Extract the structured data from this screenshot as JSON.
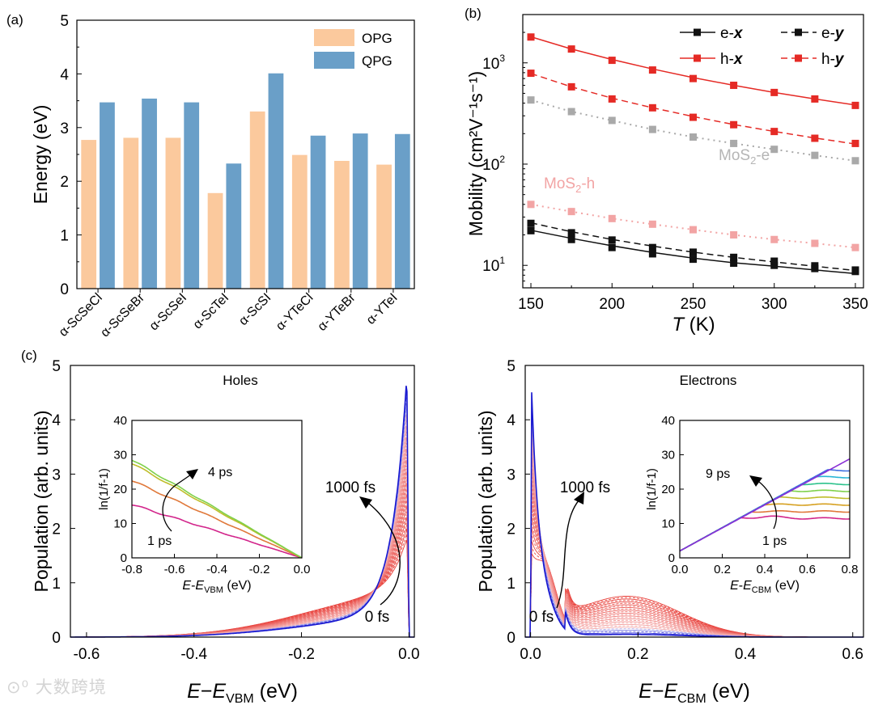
{
  "watermark": "大数跨境",
  "chart_data": [
    {
      "panel": "(a)",
      "type": "bar",
      "ylabel": "Energy (eV)",
      "ylim": [
        0,
        5
      ],
      "yticks": [
        "0",
        "1",
        "2",
        "3",
        "4",
        "5"
      ],
      "categories": [
        "α-ScSeCl",
        "α-ScSeBr",
        "α-ScSeI",
        "α-ScTeI",
        "α-ScSI",
        "α-YTeCl",
        "α-YTeBr",
        "α-YTeI"
      ],
      "series": [
        {
          "name": "OPG",
          "color": "#fbc99d",
          "values": [
            2.77,
            2.81,
            2.81,
            1.78,
            3.3,
            2.49,
            2.38,
            2.31
          ]
        },
        {
          "name": "QPG",
          "color": "#6a9fc8",
          "values": [
            3.47,
            3.54,
            3.47,
            2.33,
            4.01,
            2.85,
            2.89,
            2.88
          ]
        }
      ],
      "legend": "top-right"
    },
    {
      "panel": "(b)",
      "type": "line",
      "scale": "log-y",
      "xlabel_italic": "T",
      "xlabel_rest": " (K)",
      "ylabel": "Mobility (cm²V⁻¹s⁻¹)",
      "xlim": [
        145,
        355
      ],
      "ylim": [
        6,
        3000
      ],
      "xticks": [
        "150",
        "200",
        "250",
        "300",
        "350"
      ],
      "x": [
        150,
        175,
        200,
        225,
        250,
        275,
        300,
        325,
        350
      ],
      "series": [
        {
          "name": "e-",
          "axis": "x",
          "color": "#111111",
          "style": "solid",
          "values": [
            22,
            18,
            15,
            13,
            11.5,
            10.5,
            10,
            9.3,
            8.7
          ],
          "fit": [
            22.2,
            18.5,
            15.6,
            13.4,
            11.8,
            10.6,
            9.8,
            9.0,
            8.3
          ]
        },
        {
          "name": "e-",
          "axis": "y",
          "color": "#111111",
          "style": "dashed",
          "values": [
            26,
            21,
            17.8,
            15,
            13.5,
            12,
            11,
            9.9,
            9
          ],
          "fit": [
            26.3,
            21.5,
            18.0,
            15.5,
            13.5,
            12.0,
            10.8,
            9.8,
            8.9
          ]
        },
        {
          "name": "h-",
          "axis": "x",
          "color": "#e52a25",
          "style": "solid",
          "values": [
            1800,
            1370,
            1060,
            850,
            700,
            600,
            510,
            440,
            380
          ],
          "fit": [
            1810,
            1370,
            1080,
            870,
            715,
            600,
            510,
            440,
            383
          ]
        },
        {
          "name": "h-",
          "axis": "y",
          "color": "#e52a25",
          "style": "dashed",
          "values": [
            790,
            580,
            440,
            360,
            290,
            245,
            210,
            180,
            160
          ],
          "fit": [
            785,
            580,
            448,
            360,
            295,
            246,
            210,
            181,
            158
          ]
        },
        {
          "name": "MoS2-e",
          "color": "#a9a9a9",
          "style": "dotted",
          "values": [
            430,
            330,
            270,
            220,
            185,
            160,
            140,
            122,
            108
          ]
        },
        {
          "name": "MoS2-h",
          "color": "#f2a4a4",
          "style": "dotted",
          "values": [
            40,
            34,
            29,
            25.5,
            22.5,
            20,
            18,
            16.5,
            15
          ]
        }
      ],
      "annotations": {
        "mos2_e_main": "MoS",
        "mos2_e_sub": "2",
        "mos2_e_tail": "-e",
        "mos2_h_main": "MoS",
        "mos2_h_sub": "2",
        "mos2_h_tail": "-h"
      },
      "legend": "top-right"
    },
    {
      "panel": "(c)",
      "subplot": "Holes",
      "type": "line",
      "xlabel_main": "E",
      "xlabel_mid": "−E",
      "xlabel_sub": "VBM",
      "xlabel_unit": " (eV)",
      "ylabel": "Population (arb. units)",
      "xlim": [
        -0.63,
        0.01
      ],
      "ylim": [
        0,
        5
      ],
      "xticks": [
        "-0.6",
        "-0.4",
        "-0.2",
        "0.0"
      ],
      "yticks": [
        "0",
        "1",
        "2",
        "3",
        "4",
        "5"
      ],
      "time_labels": {
        "late": "1000 fs",
        "early": "0 fs"
      },
      "curve_count": 28,
      "curves_from": "0 fs (red)",
      "curves_to": "1000 fs (blue)",
      "inset": {
        "ylabel": "ln(1/f-1)",
        "xlabel_main": "E-E",
        "xlabel_sub": "VBM",
        "xlabel_unit": " (eV)",
        "xlim": [
          -0.8,
          0.0
        ],
        "ylim": [
          0,
          40
        ],
        "xticks": [
          "-0.8",
          "-0.6",
          "-0.4",
          "-0.2",
          "0.0"
        ],
        "yticks": [
          "0",
          "10",
          "20",
          "30",
          "40"
        ],
        "labels": {
          "late": "4 ps",
          "early": "1 ps"
        },
        "series": [
          {
            "name": "1 ps",
            "color": "#d2258b",
            "y_at_-0.8": 15.5
          },
          {
            "name": "2 ps",
            "color": "#e0783a",
            "y_at_-0.8": 22.5
          },
          {
            "name": "3 ps",
            "color": "#bfbd2a",
            "y_at_-0.8": 27.5
          },
          {
            "name": "4 ps",
            "color": "#7fd14a",
            "y_at_-0.8": 28.5
          }
        ]
      }
    },
    {
      "panel": "(c)",
      "subplot": "Electrons",
      "type": "line",
      "xlabel_main": "E",
      "xlabel_mid": "−E",
      "xlabel_sub": "CBM",
      "xlabel_unit": " (eV)",
      "ylabel": "Population (arb. units)",
      "xlim": [
        -0.01,
        0.62
      ],
      "ylim": [
        0,
        5
      ],
      "xticks": [
        "0.0",
        "0.2",
        "0.4",
        "0.6"
      ],
      "yticks": [
        "0",
        "1",
        "2",
        "3",
        "4",
        "5"
      ],
      "time_labels": {
        "late": "1000 fs",
        "early": "0 fs"
      },
      "curve_count": 28,
      "curves_from": "0 fs (red)",
      "curves_to": "1000 fs (blue)",
      "inset": {
        "ylabel": "ln(1/f-1)",
        "xlabel_main": "E-E",
        "xlabel_sub": "CBM",
        "xlabel_unit": " (eV)",
        "xlim": [
          0.0,
          0.8
        ],
        "ylim": [
          0,
          40
        ],
        "xticks": [
          "0.0",
          "0.2",
          "0.4",
          "0.6",
          "0.8"
        ],
        "yticks": [
          "0",
          "10",
          "20",
          "30",
          "40"
        ],
        "labels": {
          "late": "9 ps",
          "early": "1 ps"
        },
        "series": [
          {
            "name": "1 ps",
            "color": "#d2258b",
            "plateau": 11.5
          },
          {
            "name": "2 ps",
            "color": "#e0783a",
            "plateau": 13.5
          },
          {
            "name": "3 ps",
            "color": "#d6a020",
            "plateau": 15.5
          },
          {
            "name": "4 ps",
            "color": "#bfbd2a",
            "plateau": 17.5
          },
          {
            "name": "5 ps",
            "color": "#7fd14a",
            "plateau": 19.5
          },
          {
            "name": "6 ps",
            "color": "#2cc28c",
            "plateau": 21.5
          },
          {
            "name": "7 ps",
            "color": "#28b6d6",
            "plateau": 23.5
          },
          {
            "name": "8 ps",
            "color": "#3f6fe0",
            "plateau": 25.5
          },
          {
            "name": "9 ps",
            "color": "#8a2fd6",
            "plateau": 29.5
          }
        ]
      }
    }
  ]
}
